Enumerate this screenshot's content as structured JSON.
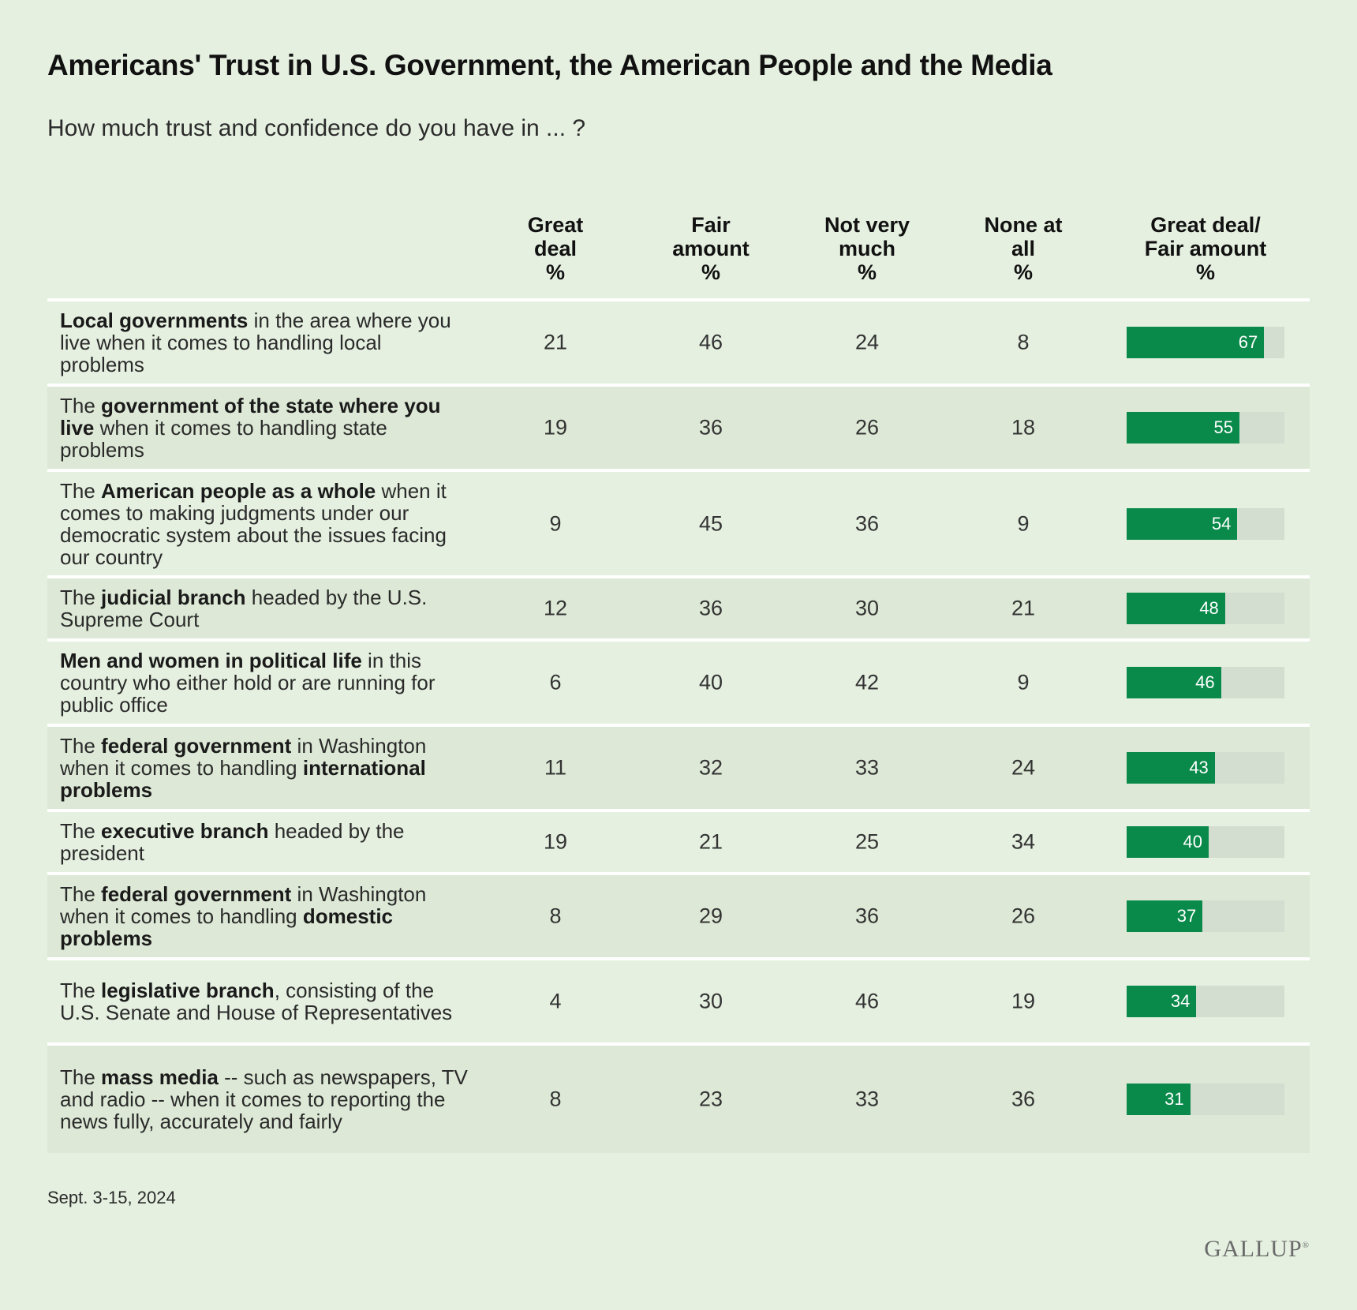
{
  "title": "Americans' Trust in U.S. Government, the American People and the Media",
  "subtitle": "How much trust and confidence do you have in ... ?",
  "columns": [
    {
      "lines": [
        "Great",
        "deal",
        "%"
      ]
    },
    {
      "lines": [
        "Fair",
        "amount",
        "%"
      ]
    },
    {
      "lines": [
        "Not very",
        "much",
        "%"
      ]
    },
    {
      "lines": [
        "None at",
        "all",
        "%"
      ]
    },
    {
      "lines": [
        "Great deal/",
        "Fair amount",
        "%"
      ]
    }
  ],
  "footnote": "Sept. 3-15, 2024",
  "logo": "GALLUP",
  "colors": {
    "background": "#e5f0e0",
    "bar": "#0a8a4a",
    "bar_track": "#d3ddd0",
    "row_shade": "#dde9d6"
  },
  "chart_data": {
    "type": "table",
    "title": "Americans' Trust in U.S. Government, the American People and the Media",
    "subtitle": "How much trust and confidence do you have in ... ?",
    "columns": [
      "Great deal %",
      "Fair amount %",
      "Not very much %",
      "None at all %",
      "Great deal/Fair amount %"
    ],
    "rows": [
      {
        "segments": [
          {
            "t": "Local governments",
            "b": true
          },
          {
            "t": " in the area where you live when it comes to handling local problems",
            "b": false
          }
        ],
        "values": [
          21,
          46,
          24,
          8
        ],
        "combined": 67
      },
      {
        "segments": [
          {
            "t": "The ",
            "b": false
          },
          {
            "t": "government of the state where you live",
            "b": true
          },
          {
            "t": " when it comes to handling state problems",
            "b": false
          }
        ],
        "values": [
          19,
          36,
          26,
          18
        ],
        "combined": 55
      },
      {
        "segments": [
          {
            "t": "The ",
            "b": false
          },
          {
            "t": "American people as a whole",
            "b": true
          },
          {
            "t": " when it comes to making judgments under our democratic system about the issues facing our country",
            "b": false
          }
        ],
        "values": [
          9,
          45,
          36,
          9
        ],
        "combined": 54
      },
      {
        "segments": [
          {
            "t": "The ",
            "b": false
          },
          {
            "t": "judicial branch",
            "b": true
          },
          {
            "t": " headed by the U.S. Supreme Court",
            "b": false
          }
        ],
        "values": [
          12,
          36,
          30,
          21
        ],
        "combined": 48
      },
      {
        "segments": [
          {
            "t": "Men and women in political life",
            "b": true
          },
          {
            "t": " in this country who either hold or are running for public office",
            "b": false
          }
        ],
        "values": [
          6,
          40,
          42,
          9
        ],
        "combined": 46
      },
      {
        "segments": [
          {
            "t": "The ",
            "b": false
          },
          {
            "t": "federal government",
            "b": true
          },
          {
            "t": " in Washington when it comes to handling ",
            "b": false
          },
          {
            "t": "international problems",
            "b": true
          }
        ],
        "values": [
          11,
          32,
          33,
          24
        ],
        "combined": 43
      },
      {
        "segments": [
          {
            "t": "The ",
            "b": false
          },
          {
            "t": "executive branch",
            "b": true
          },
          {
            "t": " headed by the president",
            "b": false
          }
        ],
        "values": [
          19,
          21,
          25,
          34
        ],
        "combined": 40
      },
      {
        "segments": [
          {
            "t": "The ",
            "b": false
          },
          {
            "t": "federal government",
            "b": true
          },
          {
            "t": " in Washington when it comes to handling ",
            "b": false
          },
          {
            "t": "domestic problems",
            "b": true
          }
        ],
        "values": [
          8,
          29,
          36,
          26
        ],
        "combined": 37
      },
      {
        "segments": [
          {
            "t": "The ",
            "b": false
          },
          {
            "t": "legislative branch",
            "b": true
          },
          {
            "t": ", consisting of the U.S. Senate and House of Representatives",
            "b": false
          }
        ],
        "values": [
          4,
          30,
          46,
          19
        ],
        "combined": 34
      },
      {
        "segments": [
          {
            "t": "The ",
            "b": false
          },
          {
            "t": "mass media",
            "b": true
          },
          {
            "t": " -- such as newspapers, TV and radio -- when it comes to reporting the news fully, accurately and fairly",
            "b": false
          }
        ],
        "values": [
          8,
          23,
          33,
          36
        ],
        "combined": 31
      }
    ],
    "bar_max": 100
  }
}
